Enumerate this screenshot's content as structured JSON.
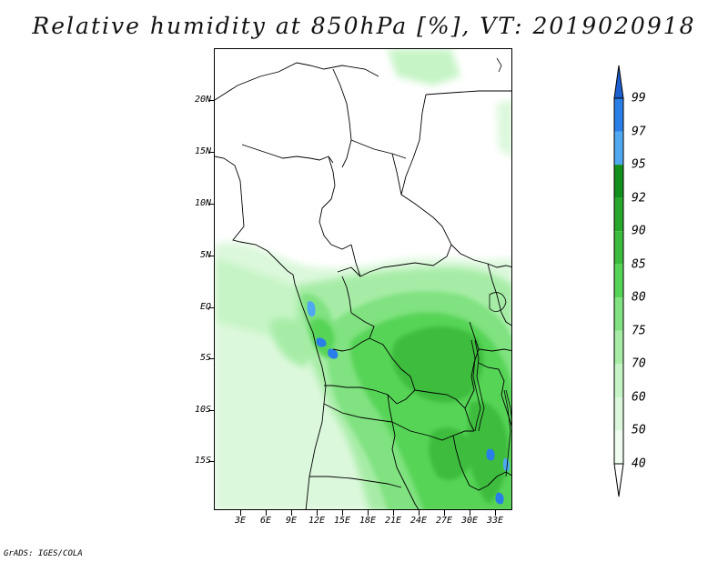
{
  "title": "Relative humidity at 850hPa [%], VT: 2019020918",
  "lat_labels": [
    "20N",
    "15N",
    "10N",
    "5N",
    "EQ",
    "5S",
    "10S",
    "15S"
  ],
  "lon_labels": [
    "3E",
    "6E",
    "9E",
    "12E",
    "15E",
    "18E",
    "21E",
    "24E",
    "27E",
    "30E",
    "33E"
  ],
  "colorbar": {
    "levels": [
      "99",
      "97",
      "95",
      "92",
      "90",
      "85",
      "80",
      "75",
      "70",
      "60",
      "50",
      "40"
    ],
    "colors": [
      "#1c5fd0",
      "#2a7ee8",
      "#4fa8f0",
      "#12901c",
      "#27a82a",
      "#3cbc3c",
      "#56d456",
      "#80e280",
      "#a6eca6",
      "#c6f4c6",
      "#dcf8dc",
      "#effcef"
    ],
    "top_arrow_color": "#1c5fd0",
    "bottom_arrow_color": "#ffffff"
  },
  "footer": "GrADS: IGES/COLA"
}
